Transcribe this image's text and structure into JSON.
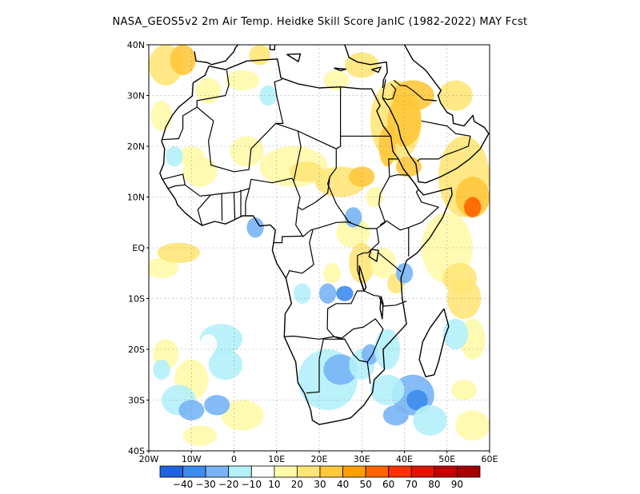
{
  "title": "NASA_GEOS5v2  2m Air Temp. Heidke Skill Score JanIC (1982-2022) MAY Fcst",
  "map": {
    "region": "Africa",
    "lon_range": [
      -20,
      60
    ],
    "lat_range": [
      -40,
      40
    ],
    "gridlines": "dotted",
    "lat_ticks": [
      "40N",
      "30N",
      "20N",
      "10N",
      "EQ",
      "10S",
      "20S",
      "30S",
      "40S"
    ],
    "lon_ticks": [
      "20W",
      "10W",
      "0",
      "10E",
      "20E",
      "30E",
      "40E",
      "50E",
      "60E"
    ]
  },
  "colorbar": {
    "colors": [
      "#1e64dc",
      "#3c8cf0",
      "#78b4f5",
      "#b4f0fa",
      "#ffffff",
      "#fffaaa",
      "#ffe678",
      "#ffc83c",
      "#ffa000",
      "#ff6400",
      "#ff3200",
      "#e11400",
      "#c00000",
      "#a50000"
    ],
    "labels": [
      "-40",
      "-30",
      "-20",
      "-10",
      "10",
      "20",
      "30",
      "40",
      "50",
      "60",
      "70",
      "80",
      "90"
    ]
  }
}
